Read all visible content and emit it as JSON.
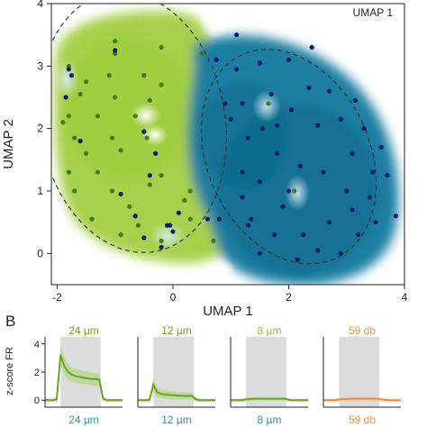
{
  "chart_data": [
    {
      "type": "scatter",
      "title": "UMAP 1",
      "xlabel": "UMAP 1",
      "ylabel": "UMAP 2",
      "xlim": [
        -2.1,
        4.0
      ],
      "ylim": [
        -0.5,
        4.0
      ],
      "xticks": [
        "-2",
        "0",
        "2",
        "4"
      ],
      "xtick_values": [
        -2,
        0,
        2,
        4
      ],
      "yticks": [
        "0",
        "1",
        "2",
        "3",
        "4"
      ],
      "ytick_values": [
        0,
        1,
        2,
        3,
        4
      ],
      "colors": {
        "green": "#3f7d1c",
        "blue": "#0a1f6e",
        "green_field": "#a8d24a",
        "blue_field": "#1a7fa0"
      },
      "clusters": [
        {
          "center": [
            -0.7,
            2.1
          ],
          "radii": [
            2.0,
            2.4
          ],
          "angle": -10
        },
        {
          "center": [
            2.0,
            1.55
          ],
          "radii": [
            1.75,
            2.05
          ],
          "angle": -25
        }
      ],
      "series": [
        {
          "color": "green",
          "points": [
            [
              -1.0,
              3.2
            ],
            [
              -0.2,
              3.3
            ],
            [
              -1.8,
              3.0
            ],
            [
              -1.1,
              2.85
            ],
            [
              -0.5,
              2.85
            ],
            [
              -1.5,
              2.75
            ],
            [
              -0.2,
              2.7
            ],
            [
              -1.6,
              2.55
            ],
            [
              -1.0,
              2.5
            ],
            [
              -0.4,
              2.45
            ],
            [
              -1.8,
              2.2
            ],
            [
              -1.3,
              2.2
            ],
            [
              -0.65,
              2.2
            ],
            [
              -1.7,
              1.85
            ],
            [
              -1.05,
              1.85
            ],
            [
              -0.45,
              1.85
            ],
            [
              -1.5,
              1.6
            ],
            [
              -0.9,
              1.65
            ],
            [
              -1.8,
              1.3
            ],
            [
              -1.3,
              1.3
            ],
            [
              -0.2,
              1.25
            ],
            [
              -1.7,
              1.0
            ],
            [
              -1.05,
              1.0
            ],
            [
              -0.4,
              1.1
            ],
            [
              0.3,
              1.0
            ],
            [
              -0.75,
              0.75
            ],
            [
              0.2,
              0.85
            ],
            [
              -1.4,
              0.55
            ],
            [
              -0.6,
              0.45
            ],
            [
              0.3,
              0.55
            ],
            [
              -0.9,
              0.3
            ],
            [
              -0.2,
              0.2
            ],
            [
              0.7,
              0.2
            ],
            [
              -1.0,
              3.4
            ],
            [
              0.5,
              3.2
            ],
            [
              1.65,
              2.4
            ],
            [
              2.1,
              1.0
            ],
            [
              -1.9,
              2.1
            ]
          ]
        },
        {
          "color": "blue",
          "points": [
            [
              -1.0,
              3.25
            ],
            [
              -1.8,
              2.95
            ],
            [
              -1.75,
              2.85
            ],
            [
              -1.85,
              2.5
            ],
            [
              -1.6,
              1.8
            ],
            [
              -0.5,
              1.95
            ],
            [
              -0.3,
              1.6
            ],
            [
              -0.4,
              1.25
            ],
            [
              -0.9,
              0.95
            ],
            [
              -0.65,
              0.6
            ],
            [
              0.1,
              0.65
            ],
            [
              -0.05,
              0.45
            ],
            [
              -0.5,
              0.25
            ],
            [
              -0.2,
              0.1
            ],
            [
              -0.1,
              0.45
            ],
            [
              0.6,
              0.55
            ],
            [
              0.0,
              0.35
            ],
            [
              0.8,
              0.55
            ],
            [
              1.2,
              2.4
            ],
            [
              1.3,
              1.85
            ],
            [
              1.2,
              1.3
            ],
            [
              1.0,
              2.15
            ],
            [
              1.1,
              2.95
            ],
            [
              1.7,
              2.55
            ],
            [
              1.5,
              3.05
            ],
            [
              2.0,
              3.1
            ],
            [
              2.4,
              3.3
            ],
            [
              1.1,
              3.5
            ],
            [
              0.9,
              2.4
            ],
            [
              1.2,
              0.9
            ],
            [
              1.3,
              0.45
            ],
            [
              1.5,
              0.0
            ],
            [
              1.75,
              0.3
            ],
            [
              1.9,
              0.75
            ],
            [
              2.25,
              0.3
            ],
            [
              2.15,
              -0.1
            ],
            [
              2.5,
              0.05
            ],
            [
              2.9,
              0.0
            ],
            [
              3.2,
              0.3
            ],
            [
              3.5,
              0.5
            ],
            [
              3.1,
              0.7
            ],
            [
              3.4,
              0.9
            ],
            [
              3.0,
              1.0
            ],
            [
              2.6,
              1.3
            ],
            [
              2.2,
              1.4
            ],
            [
              1.8,
              1.6
            ],
            [
              1.5,
              1.15
            ],
            [
              1.8,
              2.05
            ],
            [
              2.05,
              2.3
            ],
            [
              2.5,
              2.05
            ],
            [
              2.7,
              2.6
            ],
            [
              2.9,
              2.15
            ],
            [
              3.15,
              2.45
            ],
            [
              3.3,
              2.0
            ],
            [
              3.1,
              1.6
            ],
            [
              3.6,
              1.7
            ],
            [
              3.7,
              1.25
            ],
            [
              3.85,
              0.6
            ],
            [
              2.7,
              0.5
            ],
            [
              2.0,
              1.0
            ],
            [
              1.35,
              0.55
            ],
            [
              2.35,
              2.65
            ],
            [
              0.75,
              3.1
            ],
            [
              1.55,
              2.0
            ],
            [
              3.45,
              1.3
            ]
          ]
        }
      ]
    },
    {
      "type": "line",
      "panel_label": "B",
      "ylabel": "z-score FR",
      "ylim": [
        -0.5,
        4.5
      ],
      "yticks": [
        "0",
        "2",
        "4"
      ],
      "ytick_values": [
        0,
        2,
        4
      ],
      "panels": [
        {
          "title": "24 µm",
          "bottom_label": "24 µm",
          "title_color": "#6aa424",
          "bottom_color": "#2a96b4",
          "line_color": "#6aa424",
          "band_color": "#b5d78a",
          "x": [
            0,
            5,
            10,
            15,
            20,
            25,
            30,
            35,
            40,
            45,
            50,
            55,
            60,
            65,
            70,
            75,
            80,
            85,
            90,
            95,
            100
          ],
          "values": [
            0,
            0,
            0,
            0.05,
            3.2,
            2.4,
            2.0,
            1.8,
            1.7,
            1.65,
            1.6,
            1.55,
            1.5,
            1.5,
            1.45,
            0.1,
            0,
            0,
            0,
            0,
            0
          ],
          "spread": [
            0.1,
            0.1,
            0.1,
            0.15,
            0.7,
            0.6,
            0.55,
            0.5,
            0.5,
            0.5,
            0.45,
            0.45,
            0.45,
            0.45,
            0.45,
            0.15,
            0.1,
            0.1,
            0.1,
            0.1,
            0.1
          ]
        },
        {
          "title": "12 µm",
          "bottom_label": "12 µm",
          "title_color": "#6aa424",
          "bottom_color": "#2a96b4",
          "line_color": "#6aa424",
          "band_color": "#b5d78a",
          "x": [
            0,
            5,
            10,
            15,
            20,
            25,
            30,
            35,
            40,
            45,
            50,
            55,
            60,
            65,
            70,
            75,
            80,
            85,
            90,
            95,
            100
          ],
          "values": [
            0,
            0,
            0,
            0.02,
            1.1,
            0.55,
            0.45,
            0.4,
            0.38,
            0.35,
            0.33,
            0.32,
            0.3,
            0.3,
            0.3,
            0.05,
            0,
            0,
            0,
            0,
            0
          ],
          "spread": [
            0.1,
            0.1,
            0.1,
            0.12,
            0.45,
            0.35,
            0.3,
            0.3,
            0.3,
            0.28,
            0.28,
            0.28,
            0.25,
            0.25,
            0.25,
            0.12,
            0.1,
            0.1,
            0.1,
            0.1,
            0.1
          ]
        },
        {
          "title": "8 µm",
          "bottom_label": "8 µm",
          "title_color": "#8cc63e",
          "bottom_color": "#2a96b4",
          "line_color": "#6aa424",
          "band_color": "#b5d78a",
          "x": [
            0,
            5,
            10,
            15,
            20,
            25,
            30,
            35,
            40,
            45,
            50,
            55,
            60,
            65,
            70,
            75,
            80,
            85,
            90,
            95,
            100
          ],
          "values": [
            0,
            0,
            0,
            0,
            0.05,
            0.08,
            0.1,
            0.1,
            0.1,
            0.1,
            0.1,
            0.1,
            0.1,
            0.1,
            0.1,
            0.02,
            0,
            0,
            0,
            0,
            0
          ],
          "spread": [
            0.1,
            0.1,
            0.1,
            0.1,
            0.12,
            0.12,
            0.12,
            0.12,
            0.12,
            0.12,
            0.12,
            0.12,
            0.12,
            0.12,
            0.12,
            0.1,
            0.1,
            0.1,
            0.1,
            0.1,
            0.1
          ]
        },
        {
          "title": "59 db",
          "bottom_label": "59 db",
          "title_color": "#e8924a",
          "bottom_color": "#e8924a",
          "line_color": "#f08a3c",
          "band_color": "#f6c9a0",
          "x": [
            0,
            5,
            10,
            15,
            20,
            25,
            30,
            35,
            40,
            45,
            50,
            55,
            60,
            65,
            70,
            75,
            80,
            85,
            90,
            95,
            100
          ],
          "values": [
            0,
            0,
            0,
            0,
            0.05,
            0.08,
            0.08,
            0.1,
            0.1,
            0.1,
            0.1,
            0.1,
            0.1,
            0.1,
            0.1,
            0.05,
            0.02,
            0,
            0,
            0,
            0
          ],
          "spread": [
            0.1,
            0.1,
            0.1,
            0.1,
            0.12,
            0.12,
            0.12,
            0.12,
            0.12,
            0.12,
            0.12,
            0.12,
            0.12,
            0.12,
            0.12,
            0.1,
            0.1,
            0.1,
            0.1,
            0.1,
            0.1
          ]
        }
      ],
      "stimulus_window": [
        20,
        72
      ],
      "stimulus_color": "#dcdcdc"
    }
  ]
}
